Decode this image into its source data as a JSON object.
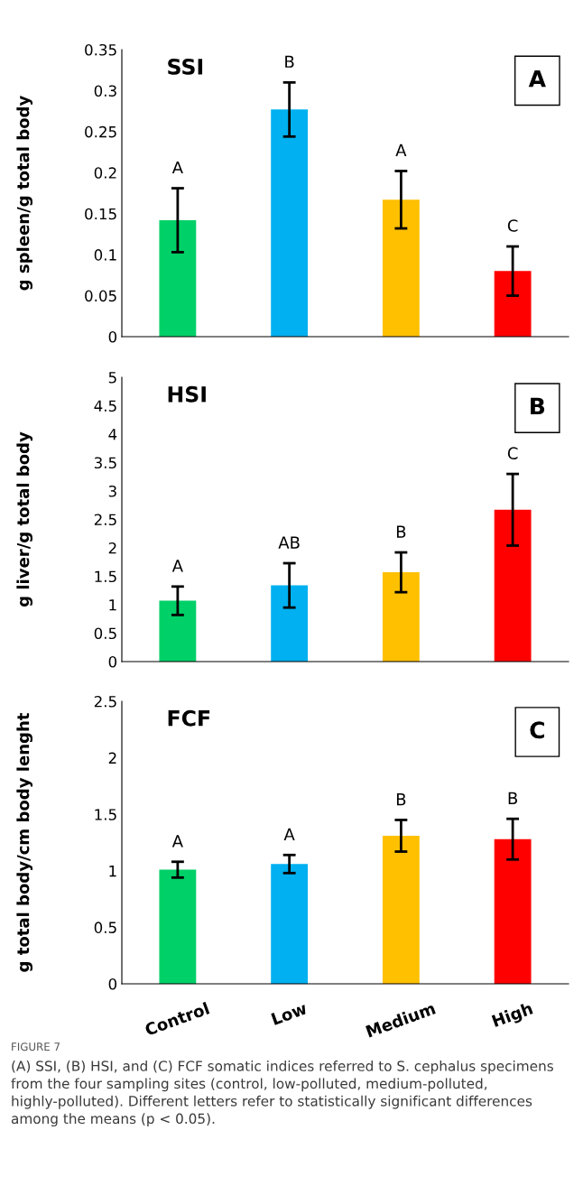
{
  "chart_data": [
    {
      "type": "bar",
      "title": "SSI",
      "ylabel": "g spleen/g total body",
      "values": [
        0.142,
        0.277,
        0.167,
        0.08
      ],
      "errors": [
        0.039,
        0.033,
        0.035,
        0.03
      ],
      "colors": [
        "#00d068",
        "#00b0f0",
        "#ffc000",
        "#ff0000"
      ],
      "ylim": [
        0,
        0.35
      ],
      "yticks": [
        {
          "value": 0,
          "label": "0"
        },
        0.05,
        {
          "value": 0.1,
          "label": "0.1"
        },
        0.15,
        {
          "value": 0.2,
          "label": "0.2"
        },
        0.25,
        {
          "value": 0.3,
          "label": "0.3"
        },
        0.35
      ],
      "tick_labels": "y",
      "grid": false,
      "annotations": [
        "A",
        "A",
        "B",
        "A",
        "C"
      ]
    },
    {
      "type": "bar",
      "title": "HSI",
      "ylabel": "g liver/g total body",
      "values": [
        1.07,
        1.34,
        1.57,
        2.67
      ],
      "errors": [
        0.25,
        0.39,
        0.35,
        0.63
      ],
      "colors": [
        "#00d068",
        "#00b0f0",
        "#ffc000",
        "#ff0000"
      ],
      "ylim": [
        0,
        5
      ],
      "yticks": [
        0,
        0.5,
        1,
        1.5,
        2,
        2.5,
        3,
        3.5,
        4,
        4.5,
        5
      ],
      "tick_labels": "y",
      "grid": false,
      "annotations": [
        "B",
        "A",
        "AB",
        "B",
        "C"
      ]
    },
    {
      "type": "bar",
      "title": "FCF",
      "ylabel": "g total body/cm body lenght",
      "categories": [
        "Control",
        "Low",
        "Medium",
        "High"
      ],
      "values": [
        1.01,
        1.06,
        1.31,
        1.28
      ],
      "errors": [
        0.07,
        0.08,
        0.14,
        0.18
      ],
      "colors": [
        "#00d068",
        "#00b0f0",
        "#ffc000",
        "#ff0000"
      ],
      "ylim": [
        0,
        2.5
      ],
      "yticks": [
        0,
        0.5,
        1,
        1.5,
        2,
        2.5
      ],
      "grid": false,
      "annotations": [
        "C",
        "A",
        "A",
        "B",
        "B",
        "FIGURE 7",
        "(A) SSI, (B) HSI, and (C) FCF somatic indices referred to S. cephalus specimens from the four sampling sites (control, low-polluted, medium-polluted, highly-polluted). Different letters refer to statistically significant differences among the means (p < 0.05)."
      ]
    }
  ]
}
